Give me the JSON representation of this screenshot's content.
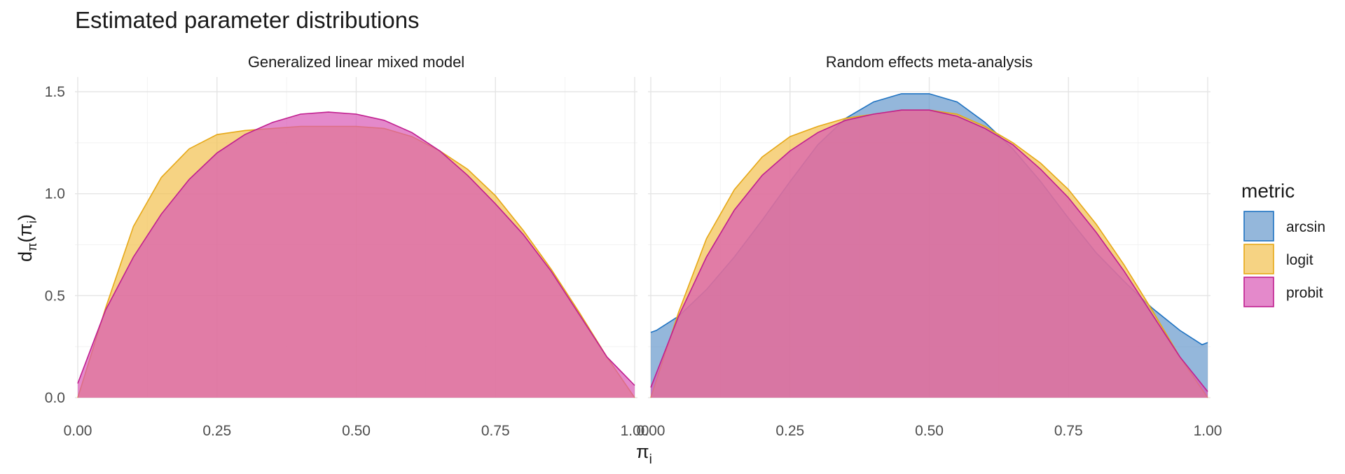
{
  "chart_data": {
    "type": "area",
    "title": "Estimated parameter distributions",
    "xlabel_main": "π",
    "xlabel_sub": "i",
    "ylabel_d": "d",
    "ylabel_pi_sub": "π",
    "ylabel_arg": "(π",
    "ylabel_arg_sub": "i",
    "ylabel_close": ")",
    "xlim": [
      0,
      1
    ],
    "ylim": [
      0,
      1.55
    ],
    "x_ticks": [
      "0.00",
      "0.25",
      "0.50",
      "0.75",
      "1.00"
    ],
    "y_ticks": [
      "0.0",
      "0.5",
      "1.0",
      "1.5"
    ],
    "grid": true,
    "legend": {
      "title": "metric",
      "position": "right",
      "entries": [
        {
          "label": "arcsin",
          "fill": "#6699CC",
          "stroke": "#1F73C2"
        },
        {
          "label": "logit",
          "fill": "#F2C14E",
          "stroke": "#E6A817"
        },
        {
          "label": "probit",
          "fill": "#D957B5",
          "stroke": "#C01E8F"
        }
      ]
    },
    "panels": [
      {
        "strip": "Generalized linear mixed model",
        "series": [
          {
            "name": "logit",
            "x": [
              0.0,
              0.05,
              0.1,
              0.15,
              0.2,
              0.25,
              0.3,
              0.35,
              0.4,
              0.45,
              0.5,
              0.55,
              0.6,
              0.65,
              0.7,
              0.75,
              0.8,
              0.85,
              0.9,
              0.95,
              1.0
            ],
            "y": [
              0.0,
              0.44,
              0.84,
              1.08,
              1.22,
              1.29,
              1.31,
              1.32,
              1.33,
              1.33,
              1.33,
              1.32,
              1.28,
              1.21,
              1.12,
              0.99,
              0.82,
              0.63,
              0.42,
              0.2,
              0.0
            ]
          },
          {
            "name": "probit",
            "x": [
              0.0,
              0.05,
              0.1,
              0.15,
              0.2,
              0.25,
              0.3,
              0.35,
              0.4,
              0.45,
              0.5,
              0.55,
              0.6,
              0.65,
              0.7,
              0.75,
              0.8,
              0.85,
              0.9,
              0.95,
              1.0
            ],
            "y": [
              0.07,
              0.43,
              0.69,
              0.9,
              1.07,
              1.2,
              1.29,
              1.35,
              1.39,
              1.4,
              1.39,
              1.36,
              1.3,
              1.21,
              1.09,
              0.95,
              0.8,
              0.62,
              0.41,
              0.2,
              0.06
            ]
          }
        ]
      },
      {
        "strip": "Random effects meta-analysis",
        "series": [
          {
            "name": "arcsin",
            "x": [
              0.0,
              0.01,
              0.05,
              0.1,
              0.15,
              0.2,
              0.25,
              0.3,
              0.35,
              0.4,
              0.45,
              0.5,
              0.55,
              0.6,
              0.65,
              0.7,
              0.75,
              0.8,
              0.85,
              0.9,
              0.95,
              0.99,
              1.0
            ],
            "y": [
              0.32,
              0.33,
              0.4,
              0.53,
              0.69,
              0.87,
              1.06,
              1.24,
              1.37,
              1.45,
              1.49,
              1.49,
              1.45,
              1.35,
              1.22,
              1.06,
              0.88,
              0.71,
              0.57,
              0.44,
              0.33,
              0.26,
              0.27
            ]
          },
          {
            "name": "logit",
            "x": [
              0.0,
              0.05,
              0.1,
              0.15,
              0.2,
              0.25,
              0.3,
              0.35,
              0.4,
              0.45,
              0.5,
              0.55,
              0.6,
              0.65,
              0.7,
              0.75,
              0.8,
              0.85,
              0.9,
              0.95,
              1.0
            ],
            "y": [
              0.0,
              0.42,
              0.78,
              1.02,
              1.18,
              1.28,
              1.33,
              1.37,
              1.39,
              1.41,
              1.41,
              1.39,
              1.33,
              1.25,
              1.15,
              1.02,
              0.85,
              0.65,
              0.43,
              0.2,
              0.0
            ]
          },
          {
            "name": "probit",
            "x": [
              0.0,
              0.05,
              0.1,
              0.15,
              0.2,
              0.25,
              0.3,
              0.35,
              0.4,
              0.45,
              0.5,
              0.55,
              0.6,
              0.65,
              0.7,
              0.75,
              0.8,
              0.85,
              0.9,
              0.95,
              1.0
            ],
            "y": [
              0.05,
              0.4,
              0.69,
              0.92,
              1.09,
              1.21,
              1.3,
              1.36,
              1.39,
              1.41,
              1.41,
              1.38,
              1.32,
              1.24,
              1.12,
              0.98,
              0.81,
              0.62,
              0.41,
              0.2,
              0.03
            ]
          }
        ]
      }
    ]
  }
}
